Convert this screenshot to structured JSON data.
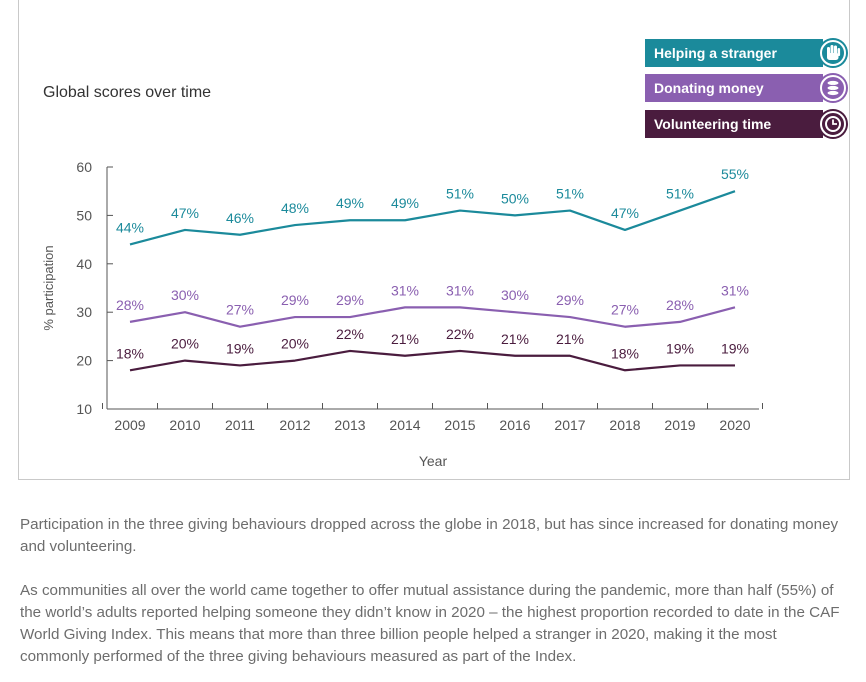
{
  "chart_data": {
    "type": "line",
    "title": "Global scores over time",
    "xlabel": "Year",
    "ylabel": "% participation",
    "categories": [
      "2009",
      "2010",
      "2011",
      "2012",
      "2013",
      "2014",
      "2015",
      "2016",
      "2017",
      "2018",
      "2019",
      "2020"
    ],
    "ylim": [
      10,
      60
    ],
    "yticks": [
      "10",
      "20",
      "30",
      "40",
      "50",
      "60"
    ],
    "grid": false,
    "legend_position": "top-right",
    "series": [
      {
        "name": "Helping a stranger",
        "color": "#1b8a9b",
        "icon": "hand-icon",
        "values": [
          44,
          47,
          46,
          48,
          49,
          49,
          51,
          50,
          51,
          47,
          51,
          55
        ],
        "labels": [
          "44%",
          "47%",
          "46%",
          "48%",
          "49%",
          "49%",
          "51%",
          "50%",
          "51%",
          "47%",
          "51%",
          "55%"
        ]
      },
      {
        "name": "Donating money",
        "color": "#8a5fb0",
        "icon": "coins-icon",
        "values": [
          28,
          30,
          27,
          29,
          29,
          31,
          31,
          30,
          29,
          27,
          28,
          31
        ],
        "labels": [
          "28%",
          "30%",
          "27%",
          "29%",
          "29%",
          "31%",
          "31%",
          "30%",
          "29%",
          "27%",
          "28%",
          "31%"
        ]
      },
      {
        "name": "Volunteering time",
        "color": "#4a1c3e",
        "icon": "clock-icon",
        "values": [
          18,
          20,
          19,
          20,
          22,
          21,
          22,
          21,
          21,
          18,
          19,
          19
        ],
        "labels": [
          "18%",
          "20%",
          "19%",
          "20%",
          "22%",
          "21%",
          "22%",
          "21%",
          "21%",
          "18%",
          "19%",
          "19%"
        ]
      }
    ]
  },
  "text": {
    "paragraph_1": "Participation in the three giving behaviours dropped across the globe in 2018, but has since increased for donating money and volunteering.",
    "paragraph_2": "As communities all over the world came together to offer mutual assistance during the pandemic, more than half (55%) of the world’s adults reported helping someone they didn’t know in 2020 – the highest proportion recorded to date in the CAF World Giving Index. This means that more than three billion people helped a stranger in 2020, making it the most commonly performed of the three giving behaviours measured as part of the Index."
  }
}
